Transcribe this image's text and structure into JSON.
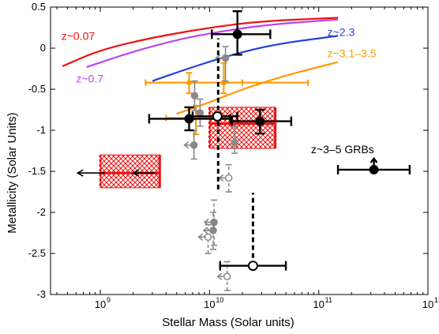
{
  "chart_data": {
    "type": "scatter",
    "title": "",
    "xlabel": "Stellar Mass (Solar units)",
    "ylabel": "Metallicity (Solar Units)",
    "xscale": "log",
    "xlim": [
      350000000.0,
      1000000000000.0
    ],
    "ylim": [
      -3,
      0.5
    ],
    "grid": false,
    "x_ticks": [
      {
        "value": 1000000000.0,
        "base": "10",
        "exp": "9"
      },
      {
        "value": 10000000000.0,
        "base": "10",
        "exp": "10"
      },
      {
        "value": 100000000000.0,
        "base": "10",
        "exp": "11"
      },
      {
        "value": 1000000000000.0,
        "base": "10",
        "exp": "12"
      }
    ],
    "y_ticks": [
      {
        "value": 0.5,
        "label": "0.5"
      },
      {
        "value": 0,
        "label": "0"
      },
      {
        "value": -0.5,
        "label": "-0.5"
      },
      {
        "value": -1,
        "label": "-1"
      },
      {
        "value": -1.5,
        "label": "-1.5"
      },
      {
        "value": -2,
        "label": "-2"
      },
      {
        "value": -2.5,
        "label": "-2.5"
      },
      {
        "value": -3,
        "label": "-3"
      }
    ],
    "relations": [
      {
        "name": "z~0.07",
        "color": "#ee1111",
        "points": [
          [
            450000000.0,
            -0.22
          ],
          [
            1000000000.0,
            -0.02
          ],
          [
            3000000000.0,
            0.13
          ],
          [
            10000000000.0,
            0.25
          ],
          [
            30000000000.0,
            0.33
          ],
          [
            150000000000.0,
            0.37
          ]
        ]
      },
      {
        "name": "z~0.7",
        "color": "#bb44ee",
        "points": [
          [
            750000000.0,
            -0.23
          ],
          [
            2000000000.0,
            -0.04
          ],
          [
            5000000000.0,
            0.1
          ],
          [
            10000000000.0,
            0.18
          ],
          [
            30000000000.0,
            0.28
          ],
          [
            150000000000.0,
            0.35
          ]
        ]
      },
      {
        "name": "z~2.3",
        "color": "#2244dd",
        "points": [
          [
            3000000000.0,
            -0.4
          ],
          [
            6000000000.0,
            -0.26
          ],
          [
            15000000000.0,
            -0.09
          ],
          [
            40000000000.0,
            0.05
          ],
          [
            150000000000.0,
            0.15
          ]
        ]
      },
      {
        "name": "z~3.1–3.5",
        "color": "#ff9900",
        "points": [
          [
            5000000000.0,
            -0.8
          ],
          [
            10000000000.0,
            -0.66
          ],
          [
            20000000000.0,
            -0.5
          ],
          [
            50000000000.0,
            -0.33
          ],
          [
            150000000000.0,
            -0.17
          ]
        ]
      }
    ],
    "curve_labels": [
      {
        "text": "z~0.07",
        "color": "#ee1111",
        "x": 440000000.0,
        "y": 0.1
      },
      {
        "text": "z~0.7",
        "color": "#bb44ee",
        "x": 600000000.0,
        "y": -0.42
      },
      {
        "text": "z~2.3",
        "color": "#2244dd",
        "x": 120000000000.0,
        "y": 0.15
      },
      {
        "text": "z~3.1–3.5",
        "color": "#ff9900",
        "x": 120000000000.0,
        "y": -0.11
      },
      {
        "text": "z~3–5 GRBs",
        "color": "#000000",
        "x": 85000000000.0,
        "y": -1.28
      }
    ],
    "hatched_boxes": [
      {
        "x0": 1000000000.0,
        "x1": 3500000000.0,
        "y0": -1.7,
        "y1": -1.3,
        "y_mid": -1.52
      },
      {
        "x0": 10000000000.0,
        "x1": 40000000000.0,
        "y0": -1.22,
        "y1": -0.72,
        "y_mid": -0.92
      }
    ],
    "upper_limit_arrows": [
      {
        "x": 1100000000.0,
        "y": -1.52,
        "x_to": 620000000.0
      },
      {
        "x": 3200000000.0,
        "y": -1.52,
        "x_to": 2000000000.0
      }
    ],
    "orange_points": [
      {
        "x": 6500000000.0,
        "y": -0.42,
        "xerr_lo": 2600000000.0,
        "xerr_hi": 20000000000.0,
        "yerr_lo": -0.55,
        "yerr_hi": -0.3
      },
      {
        "x": 13500000000.0,
        "y": -0.42,
        "xerr_lo": 2600000000.0,
        "xerr_hi": 80000000000.0,
        "yerr_lo": -0.55,
        "yerr_hi": -0.18
      },
      {
        "x": 7500000000.0,
        "y": -0.85,
        "xerr_lo": 4000000000.0,
        "xerr_hi": 15000000000.0,
        "yerr_lo": -1.05,
        "yerr_hi": -0.7
      }
    ],
    "gray_points": [
      {
        "x": 14000000000.0,
        "y": -0.12,
        "filled": true,
        "upper_limit": true,
        "yerr_lo": -0.4,
        "yerr_hi": 0.02,
        "dashed": false
      },
      {
        "x": 7300000000.0,
        "y": -0.58,
        "filled": true,
        "upper_limit": false,
        "yerr_lo": -0.76,
        "yerr_hi": -0.4,
        "dashed": false
      },
      {
        "x": 8200000000.0,
        "y": -0.79,
        "filled": true,
        "upper_limit": false,
        "yerr_lo": -0.95,
        "yerr_hi": -0.62,
        "dashed": false
      },
      {
        "x": 7200000000.0,
        "y": -1.18,
        "filled": true,
        "upper_limit": true,
        "yerr_lo": -1.35,
        "yerr_hi": -1.0,
        "dashed": false
      },
      {
        "x": 17000000000.0,
        "y": -1.15,
        "filled": true,
        "upper_limit": false,
        "yerr_lo": -1.28,
        "yerr_hi": -0.95,
        "dashed": false
      },
      {
        "x": 15000000000.0,
        "y": -1.58,
        "filled": false,
        "upper_limit": true,
        "yerr_lo": -1.75,
        "yerr_hi": -1.42,
        "dashed": true
      },
      {
        "x": 11000000000.0,
        "y": -2.12,
        "filled": true,
        "upper_limit": true,
        "yerr_lo": -2.4,
        "yerr_hi": -1.85,
        "dashed": true
      },
      {
        "x": 10800000000.0,
        "y": -2.22,
        "filled": true,
        "upper_limit": true,
        "yerr_lo": -2.45,
        "yerr_hi": -2.0,
        "dashed": true
      },
      {
        "x": 9700000000.0,
        "y": -2.3,
        "filled": false,
        "upper_limit": true,
        "yerr_lo": -2.5,
        "yerr_hi": -2.15,
        "dashed": true
      },
      {
        "x": 14500000000.0,
        "y": -2.78,
        "filled": false,
        "upper_limit": true,
        "yerr_lo": -2.95,
        "yerr_hi": -2.6,
        "dashed": true
      }
    ],
    "grb_points": [
      {
        "x": 18000000000.0,
        "y": 0.17,
        "filled": true,
        "xerr_lo": 10500000000.0,
        "xerr_hi": 36000000000.0,
        "yerr_lo": -0.08,
        "yerr_hi": 0.45,
        "y_limit_lo": null
      },
      {
        "x": 6500000000.0,
        "y": -0.86,
        "filled": true,
        "xerr_lo": 2800000000.0,
        "xerr_hi": 15500000000.0,
        "yerr_lo": -1.0,
        "yerr_hi": -0.72,
        "y_limit_lo": null
      },
      {
        "x": 11800000000.0,
        "y": -0.83,
        "filled": false,
        "xerr_lo": 7000000000.0,
        "xerr_hi": 18000000000.0,
        "yerr_lo": null,
        "yerr_hi": null,
        "y_limit_lo": null
      },
      {
        "x": 29000000000.0,
        "y": -0.89,
        "filled": true,
        "xerr_lo": 16000000000.0,
        "xerr_hi": 56000000000.0,
        "yerr_lo": -1.04,
        "yerr_hi": -0.75,
        "y_limit_lo": null
      },
      {
        "x": 320000000000.0,
        "y": -1.48,
        "filled": true,
        "xerr_lo": 150000000000.0,
        "xerr_hi": 680000000000.0,
        "yerr_lo": null,
        "yerr_hi": null,
        "y_limit_lo": -1.48
      },
      {
        "x": 25000000000.0,
        "y": -2.65,
        "filled": false,
        "xerr_lo": 12500000000.0,
        "xerr_hi": 50000000000.0,
        "yerr_lo": null,
        "yerr_hi": null,
        "y_limit_lo": null
      }
    ],
    "dashed_limits": [
      {
        "x": 12000000000.0,
        "y_from": -1.72,
        "y_to": 0.12
      },
      {
        "x": 25000000000.0,
        "y_from": -2.65,
        "y_to": -1.76
      }
    ]
  }
}
